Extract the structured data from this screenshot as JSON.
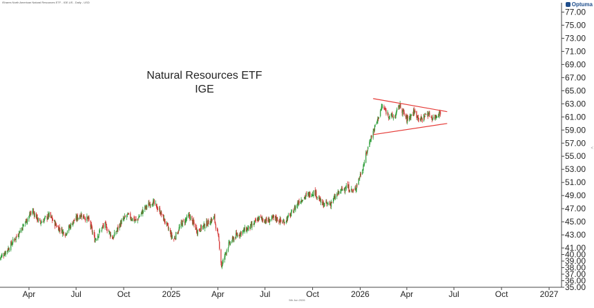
{
  "header": {
    "instrument": "iShares North American Natural Resources ETF - IGE.US - Daily - USD",
    "logo_text": "Optuma",
    "logo_icon": "optuma-logo-icon"
  },
  "footer": {
    "date_label": "5th Jun 2026"
  },
  "edge_marker": "<",
  "chart_data": {
    "type": "candlestick",
    "title": "Natural Resources ETF",
    "subtitle": "IGE",
    "xlabel": "",
    "ylabel": "",
    "grid": false,
    "y_axis_side": "right",
    "ylim": [
      35.0,
      78.0
    ],
    "y_ticks": [
      35.0,
      36.0,
      37.0,
      38.0,
      39.0,
      40.0,
      41.0,
      43.0,
      45.0,
      47.0,
      49.0,
      51.0,
      53.0,
      55.0,
      57.0,
      59.0,
      61.0,
      63.0,
      65.0,
      67.0,
      69.0,
      71.0,
      73.0,
      75.0,
      77.0
    ],
    "y_tick_labels": [
      "35.00",
      "36.00",
      "37.00",
      "38.00",
      "39.00",
      "40.00",
      "41.00",
      "43.00",
      "45.00",
      "47.00",
      "49.00",
      "51.00",
      "53.00",
      "55.00",
      "57.00",
      "59.00",
      "61.00",
      "63.00",
      "65.00",
      "67.00",
      "69.00",
      "71.00",
      "73.00",
      "75.00",
      "77.00"
    ],
    "xlim": [
      "2024-02-05",
      "2027-01-25"
    ],
    "x_ticks": [
      {
        "date": "2024-04-01",
        "label": "Apr"
      },
      {
        "date": "2024-07-01",
        "label": "Jul"
      },
      {
        "date": "2024-10-01",
        "label": "Oct"
      },
      {
        "date": "2025-01-01",
        "label": "2025"
      },
      {
        "date": "2025-04-01",
        "label": "Apr"
      },
      {
        "date": "2025-07-01",
        "label": "Jul"
      },
      {
        "date": "2025-10-01",
        "label": "Oct"
      },
      {
        "date": "2026-01-01",
        "label": "2026"
      },
      {
        "date": "2026-04-01",
        "label": "Apr"
      },
      {
        "date": "2026-07-01",
        "label": "Jul"
      },
      {
        "date": "2026-10-01",
        "label": "Oct"
      },
      {
        "date": "2027-01-01",
        "label": "2027"
      }
    ],
    "price_path": [
      {
        "date": "2024-02-05",
        "close": 39.5
      },
      {
        "date": "2024-02-20",
        "close": 40.8
      },
      {
        "date": "2024-03-10",
        "close": 43.0
      },
      {
        "date": "2024-03-25",
        "close": 45.0
      },
      {
        "date": "2024-04-08",
        "close": 46.7
      },
      {
        "date": "2024-04-22",
        "close": 44.8
      },
      {
        "date": "2024-05-10",
        "close": 46.0
      },
      {
        "date": "2024-05-25",
        "close": 44.3
      },
      {
        "date": "2024-06-10",
        "close": 43.2
      },
      {
        "date": "2024-06-25",
        "close": 45.0
      },
      {
        "date": "2024-07-10",
        "close": 46.1
      },
      {
        "date": "2024-07-25",
        "close": 45.3
      },
      {
        "date": "2024-08-06",
        "close": 42.3
      },
      {
        "date": "2024-08-25",
        "close": 44.6
      },
      {
        "date": "2024-09-10",
        "close": 42.5
      },
      {
        "date": "2024-09-25",
        "close": 44.8
      },
      {
        "date": "2024-10-08",
        "close": 46.0
      },
      {
        "date": "2024-10-25",
        "close": 45.1
      },
      {
        "date": "2024-11-10",
        "close": 47.0
      },
      {
        "date": "2024-11-25",
        "close": 48.1
      },
      {
        "date": "2024-12-10",
        "close": 46.6
      },
      {
        "date": "2024-12-20",
        "close": 45.0
      },
      {
        "date": "2025-01-05",
        "close": 42.2
      },
      {
        "date": "2025-01-20",
        "close": 44.6
      },
      {
        "date": "2025-02-05",
        "close": 45.9
      },
      {
        "date": "2025-02-20",
        "close": 43.6
      },
      {
        "date": "2025-03-10",
        "close": 44.7
      },
      {
        "date": "2025-03-25",
        "close": 45.6
      },
      {
        "date": "2025-04-03",
        "close": 42.0
      },
      {
        "date": "2025-04-08",
        "close": 38.2
      },
      {
        "date": "2025-04-20",
        "close": 41.3
      },
      {
        "date": "2025-05-05",
        "close": 42.8
      },
      {
        "date": "2025-05-20",
        "close": 43.6
      },
      {
        "date": "2025-06-05",
        "close": 44.3
      },
      {
        "date": "2025-06-20",
        "close": 45.6
      },
      {
        "date": "2025-07-05",
        "close": 45.1
      },
      {
        "date": "2025-07-20",
        "close": 45.6
      },
      {
        "date": "2025-08-05",
        "close": 44.9
      },
      {
        "date": "2025-08-20",
        "close": 46.1
      },
      {
        "date": "2025-09-05",
        "close": 48.2
      },
      {
        "date": "2025-09-20",
        "close": 49.0
      },
      {
        "date": "2025-10-05",
        "close": 49.6
      },
      {
        "date": "2025-10-20",
        "close": 47.6
      },
      {
        "date": "2025-11-05",
        "close": 47.8
      },
      {
        "date": "2025-11-20",
        "close": 49.4
      },
      {
        "date": "2025-12-05",
        "close": 50.4
      },
      {
        "date": "2025-12-20",
        "close": 49.5
      },
      {
        "date": "2026-01-05",
        "close": 53.0
      },
      {
        "date": "2026-01-20",
        "close": 57.5
      },
      {
        "date": "2026-02-01",
        "close": 60.0
      },
      {
        "date": "2026-02-12",
        "close": 62.6
      },
      {
        "date": "2026-02-25",
        "close": 61.3
      },
      {
        "date": "2026-03-08",
        "close": 60.9
      },
      {
        "date": "2026-03-18",
        "close": 62.8
      },
      {
        "date": "2026-04-01",
        "close": 60.6
      },
      {
        "date": "2026-04-15",
        "close": 61.8
      },
      {
        "date": "2026-04-28",
        "close": 60.5
      },
      {
        "date": "2026-05-10",
        "close": 61.6
      },
      {
        "date": "2026-05-22",
        "close": 60.8
      },
      {
        "date": "2026-06-05",
        "close": 61.8
      }
    ],
    "trendlines": [
      {
        "name": "upper",
        "start": {
          "date": "2026-01-26",
          "value": 63.8
        },
        "end": {
          "date": "2026-06-18",
          "value": 61.8
        },
        "color": "#e53935"
      },
      {
        "name": "lower",
        "start": {
          "date": "2026-01-26",
          "value": 58.3
        },
        "end": {
          "date": "2026-06-18",
          "value": 60.0
        },
        "color": "#e53935"
      }
    ],
    "colors": {
      "up": "#2e9e3a",
      "down": "#d32f2f",
      "trendline": "#e53935",
      "axis": "#444444",
      "text": "#222222"
    }
  }
}
